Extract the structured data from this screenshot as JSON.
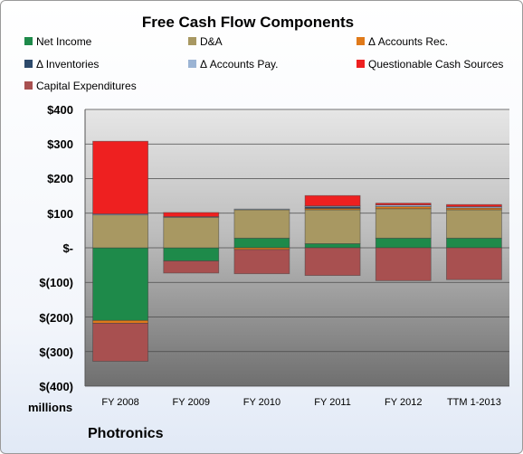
{
  "chart_data": {
    "type": "bar",
    "stacked": true,
    "title": "Free Cash Flow Components",
    "categories": [
      "FY 2008",
      "FY 2009",
      "FY 2010",
      "FY 2011",
      "FY 2012",
      "TTM 1-2013"
    ],
    "series": [
      {
        "name": "Net Income",
        "color": "#1e8a4a",
        "values": [
          -210,
          -38,
          28,
          12,
          28,
          28
        ]
      },
      {
        "name": "D&A",
        "color": "#a89862",
        "values": [
          95,
          88,
          82,
          98,
          85,
          82
        ]
      },
      {
        "name": "Δ Accounts Rec.",
        "color": "#e07a1a",
        "values": [
          -8,
          0,
          -5,
          4,
          6,
          5
        ]
      },
      {
        "name": "Δ Inventories",
        "color": "#2d4a6b",
        "values": [
          0,
          0,
          0,
          4,
          0,
          0
        ]
      },
      {
        "name": "Δ Accounts Pay.",
        "color": "#9bb4d4",
        "values": [
          3,
          2,
          2,
          3,
          5,
          4
        ]
      },
      {
        "name": "Questionable Cash Sources",
        "color": "#ee2020",
        "values": [
          210,
          12,
          0,
          30,
          5,
          6
        ]
      },
      {
        "name": "Capital Expenditures",
        "color": "#a85050",
        "values": [
          -110,
          -35,
          -70,
          -80,
          -95,
          -92
        ]
      }
    ],
    "ylim": [
      -400,
      400
    ],
    "yticks": [
      400,
      300,
      200,
      100,
      0,
      -100,
      -200,
      -300,
      -400
    ],
    "ytick_labels": [
      "$400",
      "$300",
      "$200",
      "$100",
      "$-",
      "$(100)",
      "$(200)",
      "$(300)",
      "$(400)"
    ],
    "legend": "top",
    "grid": true
  },
  "labels": {
    "units": "millions",
    "company": "Photronics"
  }
}
